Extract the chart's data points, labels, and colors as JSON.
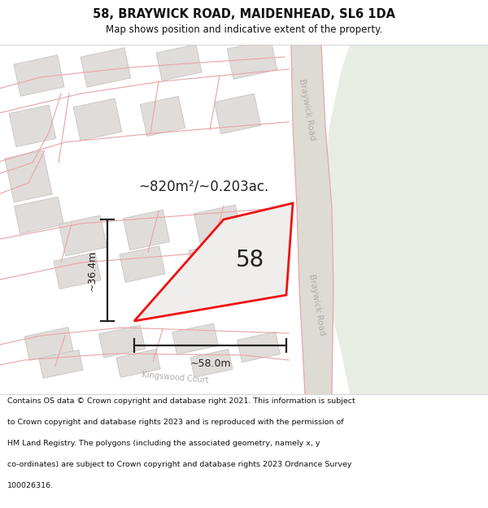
{
  "title_line1": "58, BRAYWICK ROAD, MAIDENHEAD, SL6 1DA",
  "title_line2": "Map shows position and indicative extent of the property.",
  "area_text": "~820m²/~0.203ac.",
  "property_number": "58",
  "dim_width": "~58.0m",
  "dim_height": "~36.4m",
  "footer_lines": [
    "Contains OS data © Crown copyright and database right 2021. This information is subject",
    "to Crown copyright and database rights 2023 and is reproduced with the permission of",
    "HM Land Registry. The polygons (including the associated geometry, namely x, y",
    "co-ordinates) are subject to Crown copyright and database rights 2023 Ordnance Survey",
    "100026316."
  ],
  "map_bg": "#f2f0ee",
  "road_fill": "#dedad4",
  "green_fill": "#e8ede4",
  "building_fill": "#e0dcda",
  "building_edge": "#c8c4c2",
  "road_line_color": "#e8a8a8",
  "road_text_color": "#b0aeac",
  "property_fill": "#f0eeec",
  "property_stroke": "#ee1111",
  "dim_color": "#222222",
  "title_color": "#111111",
  "footer_color": "#111111",
  "white": "#ffffff"
}
